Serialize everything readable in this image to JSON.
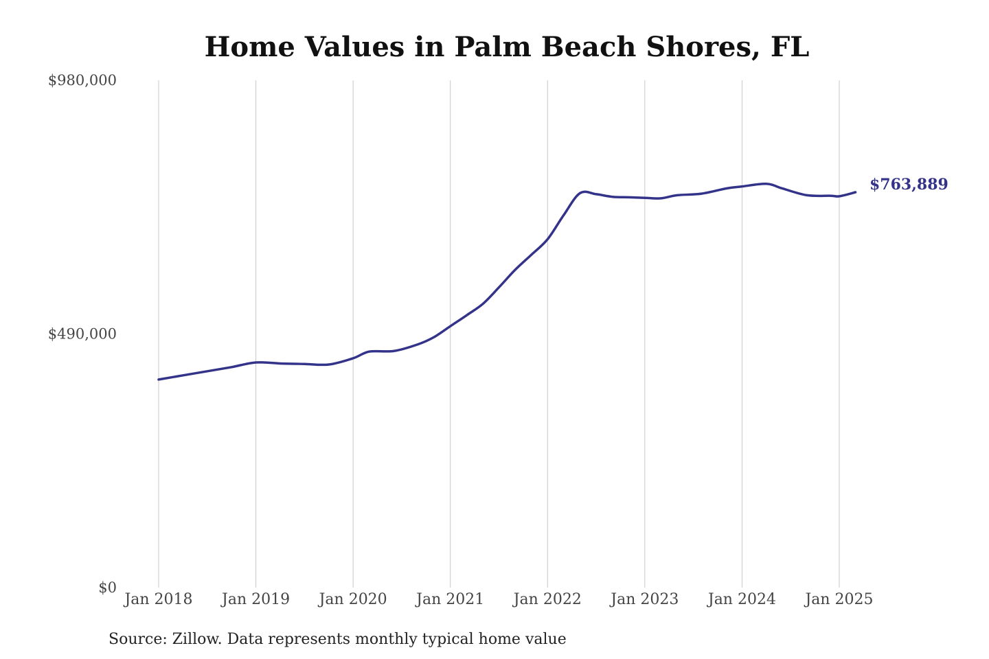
{
  "chart_data": {
    "type": "line",
    "title": "Home Values in Palm Beach Shores, FL",
    "xlabel": "",
    "ylabel": "",
    "ylim": [
      0,
      980000
    ],
    "y_ticks": [
      "$0",
      "$490,000",
      "$980,000"
    ],
    "y_tick_values": [
      0,
      490000,
      980000
    ],
    "x_ticks": [
      "Jan 2018",
      "Jan 2019",
      "Jan 2020",
      "Jan 2021",
      "Jan 2022",
      "Jan 2023",
      "Jan 2024",
      "Jan 2025"
    ],
    "x_tick_values": [
      "2018-01",
      "2019-01",
      "2020-01",
      "2021-01",
      "2022-01",
      "2023-01",
      "2024-01",
      "2025-01"
    ],
    "grid": "vertical",
    "line_color": "#33338a",
    "end_label": "$763,889",
    "source": "Source: Zillow. Data represents monthly typical home value",
    "series": [
      {
        "points": [
          [
            "2018-01",
            402000
          ],
          [
            "2018-04",
            410000
          ],
          [
            "2018-07",
            418000
          ],
          [
            "2018-10",
            426000
          ],
          [
            "2019-01",
            435000
          ],
          [
            "2019-04",
            433000
          ],
          [
            "2019-07",
            432000
          ],
          [
            "2019-10",
            431000
          ],
          [
            "2020-01",
            443000
          ],
          [
            "2020-03",
            456000
          ],
          [
            "2020-06",
            457000
          ],
          [
            "2020-09",
            470000
          ],
          [
            "2020-11",
            484000
          ],
          [
            "2021-01",
            505000
          ],
          [
            "2021-03",
            526000
          ],
          [
            "2021-05",
            548000
          ],
          [
            "2021-07",
            580000
          ],
          [
            "2021-09",
            614000
          ],
          [
            "2021-11",
            643000
          ],
          [
            "2022-01",
            673000
          ],
          [
            "2022-03",
            720000
          ],
          [
            "2022-05",
            762000
          ],
          [
            "2022-07",
            760000
          ],
          [
            "2022-09",
            755000
          ],
          [
            "2022-11",
            754000
          ],
          [
            "2023-01",
            753000
          ],
          [
            "2023-03",
            752000
          ],
          [
            "2023-05",
            758000
          ],
          [
            "2023-08",
            761000
          ],
          [
            "2023-11",
            771000
          ],
          [
            "2024-01",
            775000
          ],
          [
            "2024-04",
            780000
          ],
          [
            "2024-06",
            771000
          ],
          [
            "2024-09",
            758000
          ],
          [
            "2024-12",
            757000
          ],
          [
            "2025-01",
            756000
          ],
          [
            "2025-03",
            763889
          ]
        ]
      }
    ]
  }
}
